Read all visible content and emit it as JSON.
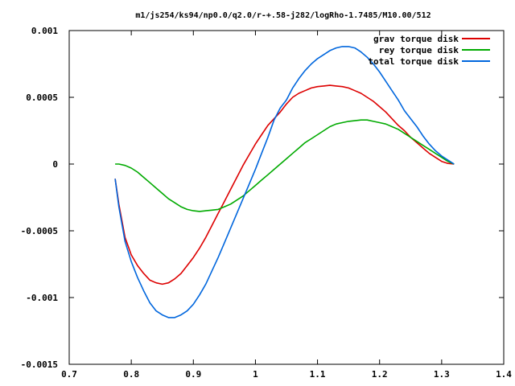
{
  "chart_data": {
    "type": "line",
    "title": "m1/js254/ks94/np0.0/q2.0/r-+.58-j282/logRho-1.7485/M10.00/512",
    "xlabel": "",
    "ylabel": "",
    "xlim": [
      0.7,
      1.4
    ],
    "ylim": [
      -0.0015,
      0.001
    ],
    "xticks": [
      0.7,
      0.8,
      0.9,
      1.0,
      1.1,
      1.2,
      1.3,
      1.4
    ],
    "xtick_labels": [
      "0.7",
      "0.8",
      "0.9",
      "1",
      "1.1",
      "1.2",
      "1.3",
      "1.4"
    ],
    "yticks": [
      -0.0015,
      -0.001,
      -0.0005,
      0,
      0.0005,
      0.001
    ],
    "ytick_labels": [
      "-0.0015",
      "-0.001",
      "-0.0005",
      "0",
      "0.0005",
      "0.001"
    ],
    "grid": false,
    "legend_position": "top-right",
    "series": [
      {
        "name": "grav torque disk",
        "color": "#dd0000",
        "points": [
          [
            0.774,
            -0.00011
          ],
          [
            0.78,
            -0.0003
          ],
          [
            0.79,
            -0.00055
          ],
          [
            0.8,
            -0.00068
          ],
          [
            0.81,
            -0.00076
          ],
          [
            0.82,
            -0.00082
          ],
          [
            0.83,
            -0.00087
          ],
          [
            0.84,
            -0.00089
          ],
          [
            0.85,
            -0.0009
          ],
          [
            0.86,
            -0.00089
          ],
          [
            0.87,
            -0.00086
          ],
          [
            0.88,
            -0.00082
          ],
          [
            0.89,
            -0.00076
          ],
          [
            0.9,
            -0.0007
          ],
          [
            0.91,
            -0.00063
          ],
          [
            0.92,
            -0.00055
          ],
          [
            0.93,
            -0.00046
          ],
          [
            0.94,
            -0.00037
          ],
          [
            0.95,
            -0.00028
          ],
          [
            0.96,
            -0.00019
          ],
          [
            0.97,
            -0.0001
          ],
          [
            0.98,
            -1e-05
          ],
          [
            0.99,
            7e-05
          ],
          [
            1.0,
            0.00015
          ],
          [
            1.01,
            0.00022
          ],
          [
            1.02,
            0.00029
          ],
          [
            1.03,
            0.00034
          ],
          [
            1.04,
            0.00039
          ],
          [
            1.05,
            0.00045
          ],
          [
            1.06,
            0.0005
          ],
          [
            1.07,
            0.00053
          ],
          [
            1.08,
            0.00055
          ],
          [
            1.09,
            0.00057
          ],
          [
            1.1,
            0.00058
          ],
          [
            1.11,
            0.000585
          ],
          [
            1.12,
            0.00059
          ],
          [
            1.13,
            0.000585
          ],
          [
            1.14,
            0.00058
          ],
          [
            1.15,
            0.00057
          ],
          [
            1.16,
            0.00055
          ],
          [
            1.17,
            0.00053
          ],
          [
            1.18,
            0.0005
          ],
          [
            1.19,
            0.00047
          ],
          [
            1.2,
            0.00043
          ],
          [
            1.21,
            0.00039
          ],
          [
            1.22,
            0.00034
          ],
          [
            1.23,
            0.00029
          ],
          [
            1.24,
            0.00025
          ],
          [
            1.25,
            0.0002
          ],
          [
            1.26,
            0.00016
          ],
          [
            1.27,
            0.00012
          ],
          [
            1.28,
            8e-05
          ],
          [
            1.29,
            5e-05
          ],
          [
            1.3,
            2e-05
          ],
          [
            1.31,
            5e-06
          ],
          [
            1.32,
            0.0
          ]
        ]
      },
      {
        "name": "rey torque disk",
        "color": "#00aa00",
        "points": [
          [
            0.774,
            0.0
          ],
          [
            0.78,
            0.0
          ],
          [
            0.79,
            -1e-05
          ],
          [
            0.8,
            -3e-05
          ],
          [
            0.81,
            -6e-05
          ],
          [
            0.82,
            -0.0001
          ],
          [
            0.83,
            -0.00014
          ],
          [
            0.84,
            -0.00018
          ],
          [
            0.85,
            -0.00022
          ],
          [
            0.86,
            -0.00026
          ],
          [
            0.87,
            -0.00029
          ],
          [
            0.88,
            -0.00032
          ],
          [
            0.89,
            -0.00034
          ],
          [
            0.9,
            -0.00035
          ],
          [
            0.91,
            -0.000355
          ],
          [
            0.92,
            -0.00035
          ],
          [
            0.93,
            -0.000345
          ],
          [
            0.94,
            -0.00034
          ],
          [
            0.95,
            -0.00032
          ],
          [
            0.96,
            -0.0003
          ],
          [
            0.97,
            -0.00027
          ],
          [
            0.98,
            -0.00024
          ],
          [
            0.99,
            -0.0002
          ],
          [
            1.0,
            -0.00016
          ],
          [
            1.01,
            -0.00012
          ],
          [
            1.02,
            -8e-05
          ],
          [
            1.03,
            -4e-05
          ],
          [
            1.04,
            0.0
          ],
          [
            1.05,
            4e-05
          ],
          [
            1.06,
            8e-05
          ],
          [
            1.07,
            0.00012
          ],
          [
            1.08,
            0.00016
          ],
          [
            1.09,
            0.00019
          ],
          [
            1.1,
            0.00022
          ],
          [
            1.11,
            0.00025
          ],
          [
            1.12,
            0.00028
          ],
          [
            1.13,
            0.0003
          ],
          [
            1.14,
            0.00031
          ],
          [
            1.15,
            0.00032
          ],
          [
            1.16,
            0.000325
          ],
          [
            1.17,
            0.00033
          ],
          [
            1.18,
            0.00033
          ],
          [
            1.19,
            0.00032
          ],
          [
            1.2,
            0.00031
          ],
          [
            1.21,
            0.0003
          ],
          [
            1.22,
            0.00028
          ],
          [
            1.23,
            0.00026
          ],
          [
            1.24,
            0.00023
          ],
          [
            1.25,
            0.0002
          ],
          [
            1.26,
            0.00017
          ],
          [
            1.27,
            0.00014
          ],
          [
            1.28,
            0.00011
          ],
          [
            1.29,
            8e-05
          ],
          [
            1.3,
            5e-05
          ],
          [
            1.31,
            2e-05
          ],
          [
            1.32,
            0.0
          ]
        ]
      },
      {
        "name": "total torque disk",
        "color": "#0066dd",
        "points": [
          [
            0.774,
            -0.00011
          ],
          [
            0.78,
            -0.00032
          ],
          [
            0.79,
            -0.00058
          ],
          [
            0.8,
            -0.00073
          ],
          [
            0.81,
            -0.00085
          ],
          [
            0.82,
            -0.00095
          ],
          [
            0.83,
            -0.00104
          ],
          [
            0.84,
            -0.0011
          ],
          [
            0.85,
            -0.00113
          ],
          [
            0.86,
            -0.00115
          ],
          [
            0.87,
            -0.00115
          ],
          [
            0.88,
            -0.00113
          ],
          [
            0.89,
            -0.0011
          ],
          [
            0.9,
            -0.00105
          ],
          [
            0.91,
            -0.00098
          ],
          [
            0.92,
            -0.0009
          ],
          [
            0.93,
            -0.0008
          ],
          [
            0.94,
            -0.0007
          ],
          [
            0.95,
            -0.00059
          ],
          [
            0.96,
            -0.00048
          ],
          [
            0.97,
            -0.00037
          ],
          [
            0.98,
            -0.00026
          ],
          [
            0.99,
            -0.00015
          ],
          [
            1.0,
            -4e-05
          ],
          [
            1.01,
            8e-05
          ],
          [
            1.02,
            0.0002
          ],
          [
            1.03,
            0.00033
          ],
          [
            1.04,
            0.00042
          ],
          [
            1.05,
            0.00048
          ],
          [
            1.06,
            0.00057
          ],
          [
            1.07,
            0.00064
          ],
          [
            1.08,
            0.0007
          ],
          [
            1.09,
            0.00075
          ],
          [
            1.1,
            0.00079
          ],
          [
            1.11,
            0.00082
          ],
          [
            1.12,
            0.00085
          ],
          [
            1.13,
            0.00087
          ],
          [
            1.14,
            0.00088
          ],
          [
            1.15,
            0.00088
          ],
          [
            1.16,
            0.00087
          ],
          [
            1.17,
            0.00084
          ],
          [
            1.18,
            0.0008
          ],
          [
            1.19,
            0.00075
          ],
          [
            1.2,
            0.00069
          ],
          [
            1.21,
            0.00062
          ],
          [
            1.22,
            0.00055
          ],
          [
            1.23,
            0.00048
          ],
          [
            1.24,
            0.0004
          ],
          [
            1.25,
            0.00034
          ],
          [
            1.26,
            0.00028
          ],
          [
            1.27,
            0.00021
          ],
          [
            1.28,
            0.00015
          ],
          [
            1.29,
            0.0001
          ],
          [
            1.3,
            6e-05
          ],
          [
            1.31,
            3e-05
          ],
          [
            1.32,
            0.0
          ]
        ]
      }
    ]
  }
}
